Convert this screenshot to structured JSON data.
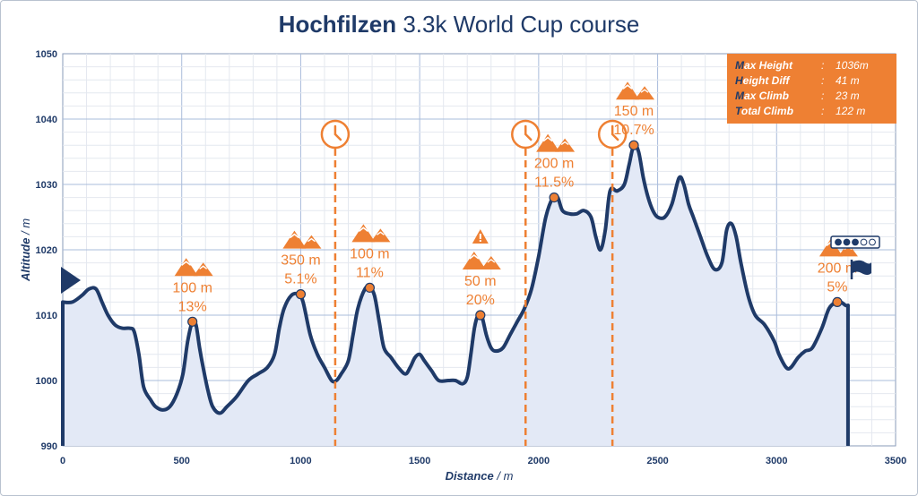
{
  "title": {
    "bold": "Hochfilzen",
    "rest": " 3.3k World Cup course"
  },
  "stats": [
    {
      "first": "M",
      "rest": "ax Height",
      "value": "1036m"
    },
    {
      "first": "H",
      "rest": "eight Diff",
      "value": "41 m"
    },
    {
      "first": "M",
      "rest": "ax Climb",
      "value": "23 m"
    },
    {
      "first": "T",
      "rest": "otal Climb",
      "value": "122 m"
    }
  ],
  "colors": {
    "line": "#1f3a68",
    "fill": "#e3e9f6",
    "accent": "#ee8033",
    "grid_minor": "#e4e8ef",
    "grid_major": "#a9bcdb"
  },
  "icons": {
    "climb": "mountain-icon",
    "timing": "clock-icon",
    "warning": "warning-icon",
    "start": "start-arrow-icon",
    "finish": "finish-flag-icon",
    "difficulty": "difficulty-dots-icon"
  },
  "chart_data": {
    "type": "area",
    "xlabel": "Distance",
    "xunit": "m",
    "ylabel": "Altitude",
    "yunit": "m",
    "xlim": [
      0,
      3500
    ],
    "ylim": [
      990,
      1050
    ],
    "xticks": [
      "0",
      "500",
      "1000",
      "1500",
      "2000",
      "2500",
      "3000",
      "3500"
    ],
    "yticks": [
      "990",
      "1000",
      "1010",
      "1020",
      "1030",
      "1040",
      "1050"
    ],
    "grid": true,
    "profile": [
      [
        0,
        1012
      ],
      [
        40,
        1012
      ],
      [
        80,
        1013
      ],
      [
        110,
        1014
      ],
      [
        140,
        1014
      ],
      [
        165,
        1012
      ],
      [
        190,
        1010
      ],
      [
        220,
        1008.5
      ],
      [
        250,
        1008
      ],
      [
        280,
        1008
      ],
      [
        300,
        1007.5
      ],
      [
        320,
        1004
      ],
      [
        340,
        999
      ],
      [
        370,
        997
      ],
      [
        390,
        996
      ],
      [
        420,
        995.5
      ],
      [
        450,
        996
      ],
      [
        480,
        998
      ],
      [
        505,
        1001
      ],
      [
        525,
        1006
      ],
      [
        545,
        1009
      ],
      [
        560,
        1008.5
      ],
      [
        575,
        1005
      ],
      [
        590,
        1002
      ],
      [
        610,
        998.5
      ],
      [
        630,
        996
      ],
      [
        660,
        995
      ],
      [
        690,
        996
      ],
      [
        730,
        997.5
      ],
      [
        780,
        1000
      ],
      [
        820,
        1001
      ],
      [
        860,
        1002
      ],
      [
        890,
        1004
      ],
      [
        910,
        1008
      ],
      [
        930,
        1011
      ],
      [
        960,
        1013
      ],
      [
        990,
        1013.2
      ],
      [
        1010,
        1012
      ],
      [
        1040,
        1007
      ],
      [
        1070,
        1004
      ],
      [
        1100,
        1002
      ],
      [
        1130,
        1000
      ],
      [
        1150,
        1000
      ],
      [
        1170,
        1001
      ],
      [
        1200,
        1003
      ],
      [
        1220,
        1007
      ],
      [
        1240,
        1011
      ],
      [
        1270,
        1014
      ],
      [
        1290,
        1014.2
      ],
      [
        1310,
        1013
      ],
      [
        1330,
        1009
      ],
      [
        1350,
        1005
      ],
      [
        1380,
        1003.5
      ],
      [
        1410,
        1002
      ],
      [
        1440,
        1001
      ],
      [
        1460,
        1002
      ],
      [
        1480,
        1003.5
      ],
      [
        1500,
        1004
      ],
      [
        1520,
        1003
      ],
      [
        1550,
        1001.5
      ],
      [
        1580,
        1000
      ],
      [
        1620,
        1000
      ],
      [
        1650,
        1000
      ],
      [
        1680,
        999.5
      ],
      [
        1700,
        1000.5
      ],
      [
        1715,
        1004
      ],
      [
        1730,
        1008
      ],
      [
        1745,
        1010
      ],
      [
        1760,
        1010
      ],
      [
        1780,
        1007
      ],
      [
        1800,
        1005
      ],
      [
        1820,
        1004.5
      ],
      [
        1850,
        1005
      ],
      [
        1880,
        1007
      ],
      [
        1910,
        1009
      ],
      [
        1940,
        1011
      ],
      [
        1970,
        1014
      ],
      [
        2000,
        1019
      ],
      [
        2030,
        1025
      ],
      [
        2060,
        1028
      ],
      [
        2080,
        1028
      ],
      [
        2100,
        1026
      ],
      [
        2130,
        1025.5
      ],
      [
        2160,
        1025.5
      ],
      [
        2190,
        1026
      ],
      [
        2220,
        1025
      ],
      [
        2240,
        1022
      ],
      [
        2260,
        1020
      ],
      [
        2280,
        1023
      ],
      [
        2300,
        1029
      ],
      [
        2330,
        1029
      ],
      [
        2360,
        1030
      ],
      [
        2380,
        1033
      ],
      [
        2400,
        1036
      ],
      [
        2420,
        1035
      ],
      [
        2440,
        1031
      ],
      [
        2460,
        1028
      ],
      [
        2480,
        1026
      ],
      [
        2500,
        1025
      ],
      [
        2530,
        1025
      ],
      [
        2560,
        1027
      ],
      [
        2590,
        1031
      ],
      [
        2610,
        1030
      ],
      [
        2630,
        1027
      ],
      [
        2650,
        1025
      ],
      [
        2680,
        1022
      ],
      [
        2710,
        1019
      ],
      [
        2740,
        1017
      ],
      [
        2770,
        1018
      ],
      [
        2790,
        1023
      ],
      [
        2810,
        1024
      ],
      [
        2830,
        1022
      ],
      [
        2850,
        1018
      ],
      [
        2880,
        1013
      ],
      [
        2910,
        1010
      ],
      [
        2950,
        1008.5
      ],
      [
        2990,
        1006
      ],
      [
        3010,
        1004
      ],
      [
        3040,
        1002
      ],
      [
        3060,
        1002
      ],
      [
        3090,
        1003.5
      ],
      [
        3120,
        1004.5
      ],
      [
        3150,
        1005
      ],
      [
        3190,
        1008
      ],
      [
        3220,
        1011
      ],
      [
        3250,
        1012
      ],
      [
        3270,
        1012
      ],
      [
        3290,
        1011.5
      ],
      [
        3300,
        1011.5
      ]
    ],
    "markers": [
      {
        "x": 545,
        "y": 1009,
        "distance": "100 m",
        "gradient": "13%"
      },
      {
        "x": 1000,
        "y": 1013.2,
        "distance": "350 m",
        "gradient": "5.1%"
      },
      {
        "x": 1290,
        "y": 1014.2,
        "distance": "100 m",
        "gradient": "11%"
      },
      {
        "x": 1755,
        "y": 1010,
        "distance": "50 m",
        "gradient": "20%",
        "warning": true
      },
      {
        "x": 2065,
        "y": 1028,
        "distance": "200 m",
        "gradient": "11.5%"
      },
      {
        "x": 2400,
        "y": 1036,
        "distance": "150 m",
        "gradient": "10.7%"
      },
      {
        "x": 3255,
        "y": 1012,
        "distance": "200 m",
        "gradient": "5%"
      }
    ],
    "time_checks": [
      1145,
      1945,
      2310
    ],
    "difficulty": {
      "level": 3,
      "max": 5
    }
  }
}
